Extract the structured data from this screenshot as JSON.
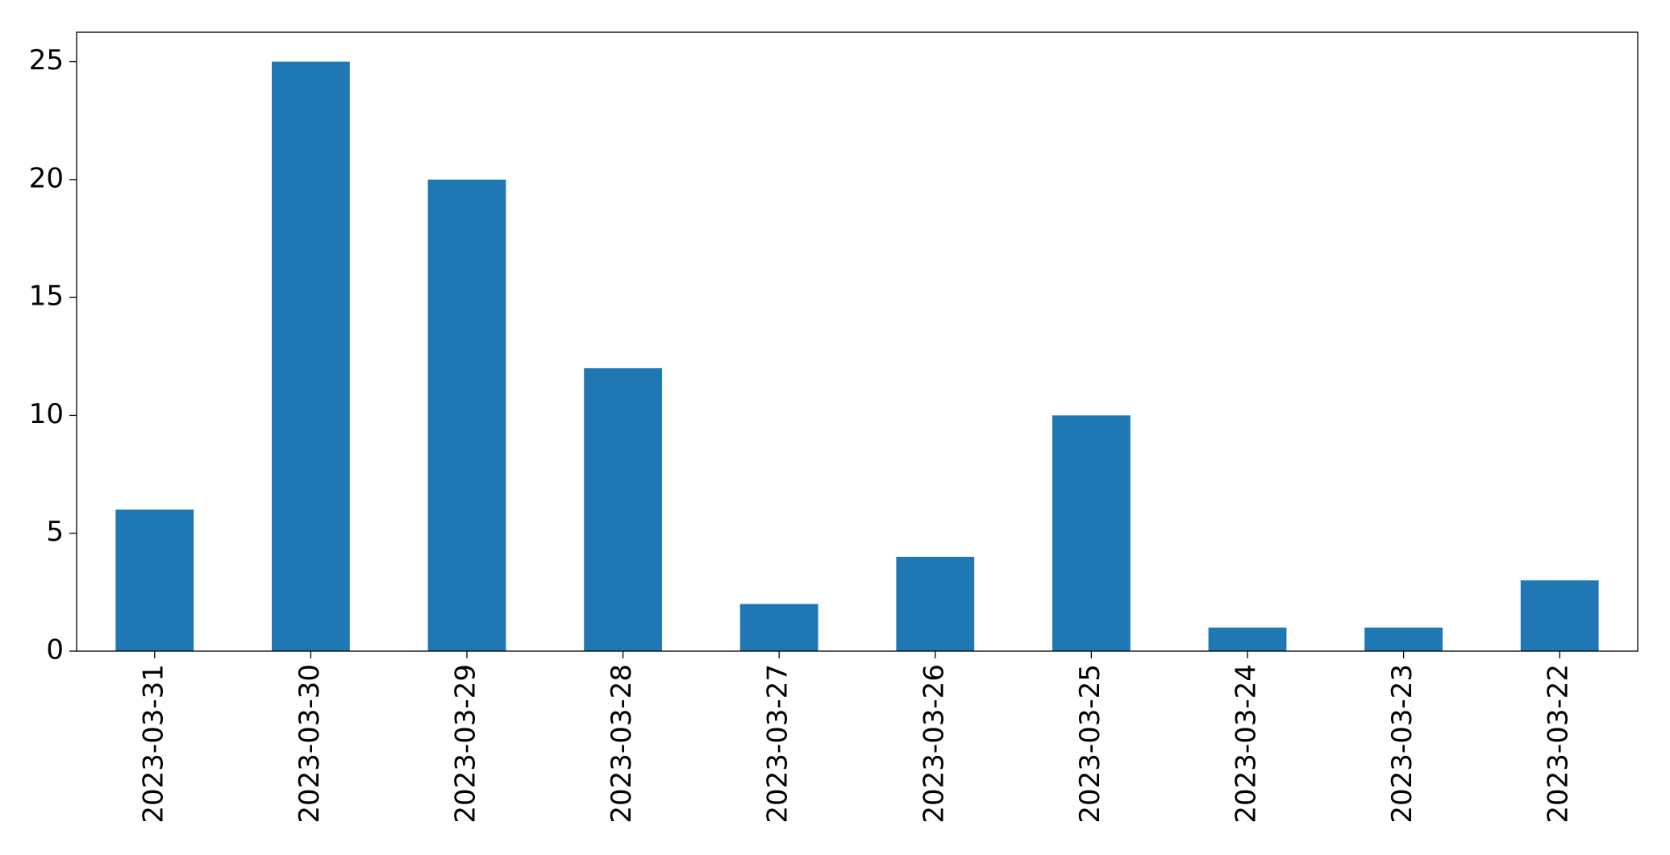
{
  "chart_data": {
    "type": "bar",
    "categories": [
      "2023-03-31",
      "2023-03-30",
      "2023-03-29",
      "2023-03-28",
      "2023-03-27",
      "2023-03-26",
      "2023-03-25",
      "2023-03-24",
      "2023-03-23",
      "2023-03-22"
    ],
    "values": [
      6,
      25,
      20,
      12,
      2,
      4,
      10,
      1,
      1,
      3
    ],
    "color": "#1f77b4",
    "ylim": [
      0,
      26.25
    ],
    "yticks": [
      0,
      5,
      10,
      15,
      20,
      25
    ],
    "grid": false
  }
}
